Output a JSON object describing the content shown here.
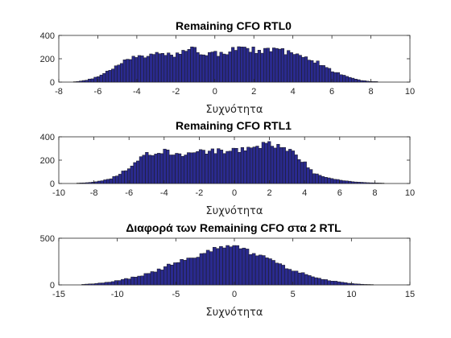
{
  "colors": {
    "bar_fill": "#2a2a8e",
    "bar_edge": "#1a1a1a",
    "axis": "#262626",
    "background": "#ffffff"
  },
  "chart_data": [
    {
      "type": "bar",
      "title": "Remaining CFO RTL0",
      "xlabel": "Συχνότητα",
      "ylabel": "",
      "xlim": [
        -8,
        10
      ],
      "ylim": [
        0,
        400
      ],
      "xticks": [
        -8,
        -6,
        -4,
        -2,
        0,
        2,
        4,
        6,
        8,
        10
      ],
      "yticks": [
        0,
        200,
        400
      ],
      "bin_width": 0.15,
      "x": [
        -7.2,
        -6.8,
        -6.4,
        -6.0,
        -5.6,
        -5.2,
        -4.8,
        -4.4,
        -4.0,
        -3.6,
        -3.2,
        -2.8,
        -2.4,
        -2.0,
        -1.6,
        -1.2,
        -0.8,
        -0.4,
        0.0,
        0.4,
        0.8,
        1.2,
        1.6,
        2.0,
        2.4,
        2.8,
        3.2,
        3.6,
        4.0,
        4.4,
        4.8,
        5.2,
        5.6,
        6.0,
        6.4,
        6.8,
        7.2,
        7.6,
        8.0,
        8.4
      ],
      "values": [
        3,
        10,
        25,
        45,
        80,
        120,
        160,
        200,
        215,
        225,
        230,
        240,
        245,
        235,
        260,
        285,
        255,
        250,
        245,
        235,
        270,
        285,
        280,
        275,
        265,
        285,
        280,
        260,
        240,
        220,
        195,
        175,
        140,
        100,
        70,
        45,
        25,
        12,
        6,
        3
      ]
    },
    {
      "type": "bar",
      "title": "Remaining CFO RTL1",
      "xlabel": "Συχνότητα",
      "ylabel": "",
      "xlim": [
        -10,
        10
      ],
      "ylim": [
        0,
        400
      ],
      "xticks": [
        -10,
        -8,
        -6,
        -4,
        -2,
        0,
        2,
        4,
        6,
        8,
        10
      ],
      "yticks": [
        0,
        200,
        400
      ],
      "bin_width": 0.17,
      "x": [
        -9.0,
        -8.5,
        -8.0,
        -7.5,
        -7.0,
        -6.5,
        -6.0,
        -5.5,
        -5.0,
        -4.5,
        -4.0,
        -3.5,
        -3.0,
        -2.5,
        -2.0,
        -1.5,
        -1.0,
        -0.5,
        0.0,
        0.5,
        1.0,
        1.5,
        2.0,
        2.5,
        3.0,
        3.5,
        4.0,
        4.5,
        5.0,
        5.5,
        6.0,
        6.5,
        7.0,
        7.5,
        8.0,
        8.5
      ],
      "values": [
        3,
        6,
        12,
        25,
        45,
        80,
        140,
        200,
        245,
        265,
        270,
        265,
        255,
        250,
        265,
        270,
        280,
        285,
        290,
        285,
        300,
        320,
        330,
        310,
        280,
        255,
        180,
        90,
        60,
        40,
        30,
        20,
        12,
        8,
        5,
        3
      ]
    },
    {
      "type": "bar",
      "title": "Διαφορά των Remaining CFO στα 2 RTL",
      "xlabel": "Συχνότητα",
      "ylabel": "",
      "xlim": [
        -15,
        15
      ],
      "ylim": [
        0,
        500
      ],
      "xticks": [
        -15,
        -10,
        -5,
        0,
        5,
        10,
        15
      ],
      "yticks": [
        0,
        500
      ],
      "bin_width": 0.28,
      "x": [
        -13,
        -12,
        -11,
        -10,
        -9,
        -8,
        -7,
        -6,
        -5,
        -4,
        -3,
        -2,
        -1,
        0,
        1,
        2,
        3,
        4,
        5,
        6,
        7,
        8,
        9,
        10,
        11,
        12
      ],
      "values": [
        5,
        12,
        25,
        45,
        70,
        100,
        140,
        185,
        235,
        280,
        330,
        370,
        400,
        420,
        380,
        320,
        265,
        210,
        160,
        115,
        80,
        50,
        30,
        15,
        6,
        2
      ]
    }
  ]
}
